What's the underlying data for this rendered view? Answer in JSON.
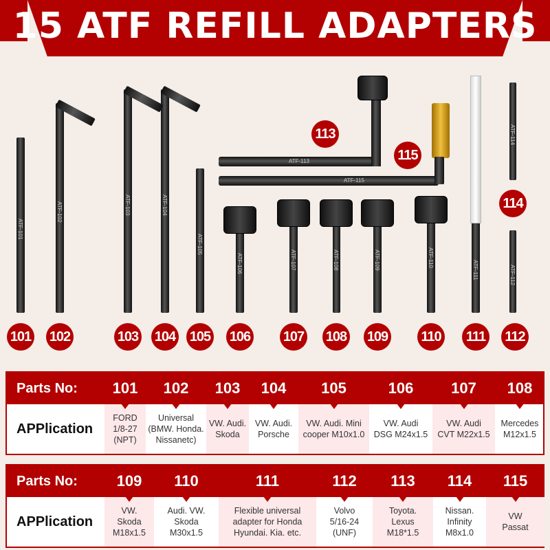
{
  "title": "15 ATF REFILL ADAPTERS",
  "colors": {
    "brand_red": "#b30000",
    "background": "#f4ede8",
    "cell_pink": "#fde8ea"
  },
  "tools": [
    {
      "no": "101",
      "label": "ATF-101"
    },
    {
      "no": "102",
      "label": "ATF-102"
    },
    {
      "no": "103",
      "label": "ATF-103"
    },
    {
      "no": "104",
      "label": "ATF-104"
    },
    {
      "no": "105",
      "label": "ATF-105"
    },
    {
      "no": "106",
      "label": "ATF-106"
    },
    {
      "no": "107",
      "label": "ATF-107"
    },
    {
      "no": "108",
      "label": "ATF-108"
    },
    {
      "no": "109",
      "label": "ATF-109"
    },
    {
      "no": "110",
      "label": "ATF-110"
    },
    {
      "no": "111",
      "label": "ATF-111"
    },
    {
      "no": "112",
      "label": "ATF-112"
    },
    {
      "no": "113",
      "label": "ATF-113"
    },
    {
      "no": "114",
      "label": "ATF-114"
    },
    {
      "no": "115",
      "label": "ATF-115"
    }
  ],
  "tables": [
    {
      "header_label": "Parts No:",
      "body_label": "APPlication",
      "columns": [
        {
          "no": "101",
          "app": "FORD\n1/8-27\n(NPT)"
        },
        {
          "no": "102",
          "app": "Universal\n(BMW. Honda.\nNissanetc)"
        },
        {
          "no": "103",
          "app": "VW. Audi.\nSkoda"
        },
        {
          "no": "104",
          "app": "VW. Audi.\nPorsche"
        },
        {
          "no": "105",
          "app": "VW. Audi. Mini\ncooper M10x1.0"
        },
        {
          "no": "106",
          "app": "VW. Audi\nDSG M24x1.5"
        },
        {
          "no": "107",
          "app": "VW. Audi\nCVT M22x1.5"
        },
        {
          "no": "108",
          "app": "Mercedes\nM12x1.5"
        }
      ]
    },
    {
      "header_label": "Parts No:",
      "body_label": "APPlication",
      "columns": [
        {
          "no": "109",
          "app": "VW.\nSkoda\nM18x1.5"
        },
        {
          "no": "110",
          "app": "Audi. VW.\nSkoda\nM30x1.5"
        },
        {
          "no": "111",
          "app": "Flexible universal\nadapter for Honda\nHyundai. Kia. etc."
        },
        {
          "no": "112",
          "app": "Volvo\n5/16-24\n(UNF)"
        },
        {
          "no": "113",
          "app": "Toyota.\nLexus\nM18*1.5"
        },
        {
          "no": "114",
          "app": "Nissan.\nInfinity\nM8x1.0"
        },
        {
          "no": "115",
          "app": "VW\nPassat"
        }
      ]
    }
  ]
}
